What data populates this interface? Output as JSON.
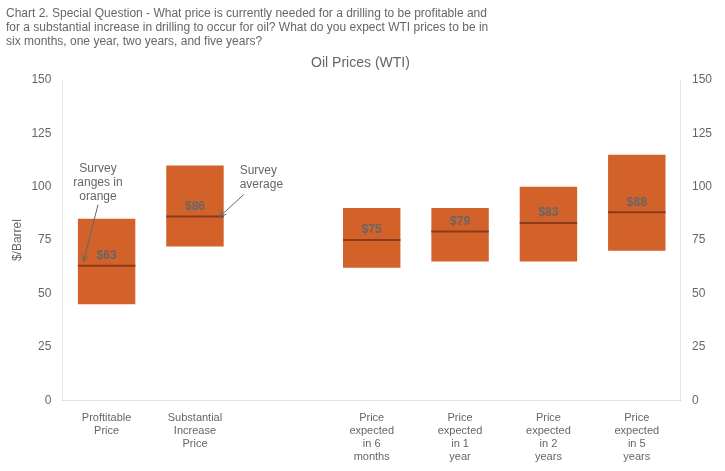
{
  "chart_data": {
    "type": "bar",
    "title": "Chart 2. Special Question - What price is currently needed for a drilling to be profitable and\nfor a substantial increase in drilling to occur for oil? What do you expect WTI prices to be in\nsix months, one year, two years, and five years?",
    "subtitle": "Oil Prices (WTI)",
    "ylabel": "$/Barrel",
    "categories": [
      "Proftitable\nPrice",
      "Substantial\nIncrease\nPrice",
      null,
      "Price\nexpected\nin 6\nmonths",
      "Price\nexpected\nin 1\nyear",
      "Price\nexpected\nin 2\nyears",
      "Price\nexpected\nin 5\nyears"
    ],
    "series": [
      {
        "type": "floating_bar",
        "color": "#d2622a",
        "values": [
          [
            45,
            85
          ],
          [
            72,
            110
          ],
          null,
          [
            62,
            90
          ],
          [
            65,
            90
          ],
          [
            65,
            100
          ],
          [
            70,
            115
          ]
        ]
      },
      {
        "type": "average",
        "color": "#8b3a1a",
        "values": [
          63,
          86,
          null,
          75,
          79,
          83,
          88
        ],
        "value_labels": [
          "$63",
          "$86",
          null,
          "$75",
          "$79",
          "$83",
          "$88"
        ],
        "data_labels": true
      }
    ],
    "annotations": [
      "Survey\nranges in\norange",
      "Survey\naverage"
    ],
    "ylim": [
      0,
      150
    ],
    "yticks": [
      0,
      25,
      50,
      75,
      100,
      125,
      150
    ],
    "y2lim": [
      0,
      150
    ],
    "y2ticks": [
      0,
      25,
      50,
      75,
      100,
      125,
      150
    ],
    "grid": false
  }
}
